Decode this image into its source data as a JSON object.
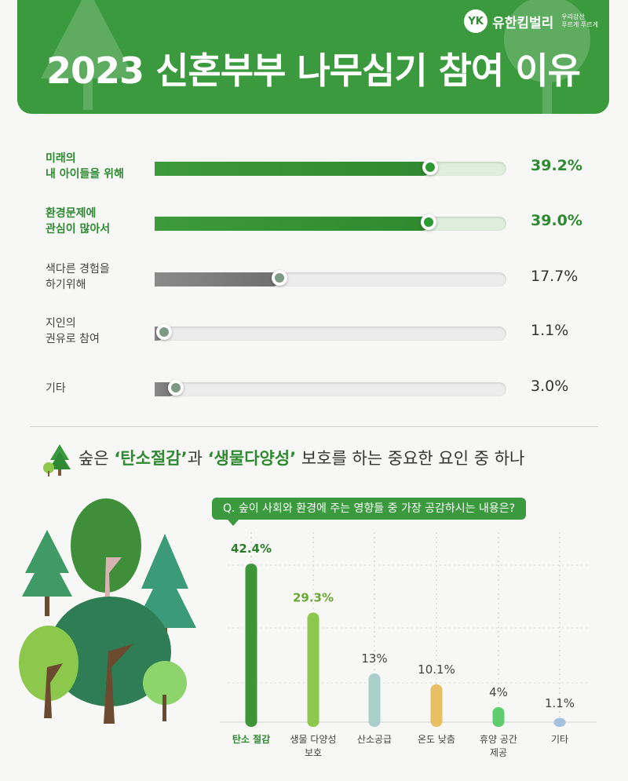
{
  "header": {
    "title": "2023 신혼부부 나무심기 참여 이유",
    "brand_name": "유한킴벌리",
    "brand_logo_text": "YK",
    "brand_slogan_line1": "우리강산",
    "brand_slogan_line2": "푸르게 푸르게"
  },
  "survey_reasons": {
    "items": [
      {
        "line1": "미래의",
        "line2": "내 아이들을 위해",
        "value_label": "39.2%",
        "value": 39.2,
        "highlight": true
      },
      {
        "line1": "환경문제에",
        "line2": "관심이 많아서",
        "value_label": "39.0%",
        "value": 39.0,
        "highlight": true
      },
      {
        "line1": "색다른 경험을",
        "line2": "하기위해",
        "value_label": "17.7%",
        "value": 17.7,
        "highlight": false
      },
      {
        "line1": "지인의",
        "line2": "권유로 참여",
        "value_label": "1.1%",
        "value": 1.1,
        "highlight": false
      },
      {
        "line1": "기타",
        "line2": "",
        "value_label": "3.0%",
        "value": 3.0,
        "highlight": false
      }
    ]
  },
  "subhead": {
    "prefix": "숲은 ",
    "emph1": "‘탄소절감’",
    "middle": "과 ",
    "emph2": "‘생물다양성’",
    "suffix": " 보호를 하는 중요한 요인 중 하나"
  },
  "question": "Q. 숲이 사회와 환경에 주는 영향들 중 가장 공감하시는 내용은?",
  "colors": {
    "brand_green": "#3a9a3d",
    "highlight_text": "#2e8a30",
    "gray_bar": "#7d7d7d"
  },
  "chart_data": [
    {
      "type": "bar",
      "orientation": "horizontal",
      "title": "",
      "categories": [
        "미래의 내 아이들을 위해",
        "환경문제에 관심이 많아서",
        "색다른 경험을 하기위해",
        "지인의 권유로 참여",
        "기타"
      ],
      "values": [
        39.2,
        39.0,
        17.7,
        1.1,
        3.0
      ],
      "value_labels": [
        "39.2%",
        "39.0%",
        "17.7%",
        "1.1%",
        "3.0%"
      ],
      "xlim": [
        0,
        50
      ],
      "unit": "%"
    },
    {
      "type": "bar",
      "orientation": "vertical",
      "title": "Q. 숲이 사회와 환경에 주는 영향들 중 가장 공감하시는 내용은?",
      "categories": [
        "탄소 절감",
        "생물 다양성 보호",
        "산소공급",
        "온도 낮춤",
        "휴양 공간 제공",
        "기타"
      ],
      "category_lines": [
        [
          "탄소 절감"
        ],
        [
          "생물 다양성",
          "보호"
        ],
        [
          "산소공급"
        ],
        [
          "온도 낮춤"
        ],
        [
          "휴양 공간",
          "제공"
        ],
        [
          "기타"
        ]
      ],
      "values": [
        42.4,
        29.3,
        13,
        10.1,
        4,
        1.1
      ],
      "value_labels": [
        "42.4%",
        "29.3%",
        "13%",
        "10.1%",
        "4%",
        "1.1%"
      ],
      "bar_colors": [
        "#3f9639",
        "#8cc84b",
        "#a9cfcb",
        "#e6c063",
        "#5fcc6d",
        "#a3c2de"
      ],
      "highlight_index": 0,
      "ylim": [
        0,
        50
      ],
      "grid": true,
      "unit": "%"
    }
  ]
}
